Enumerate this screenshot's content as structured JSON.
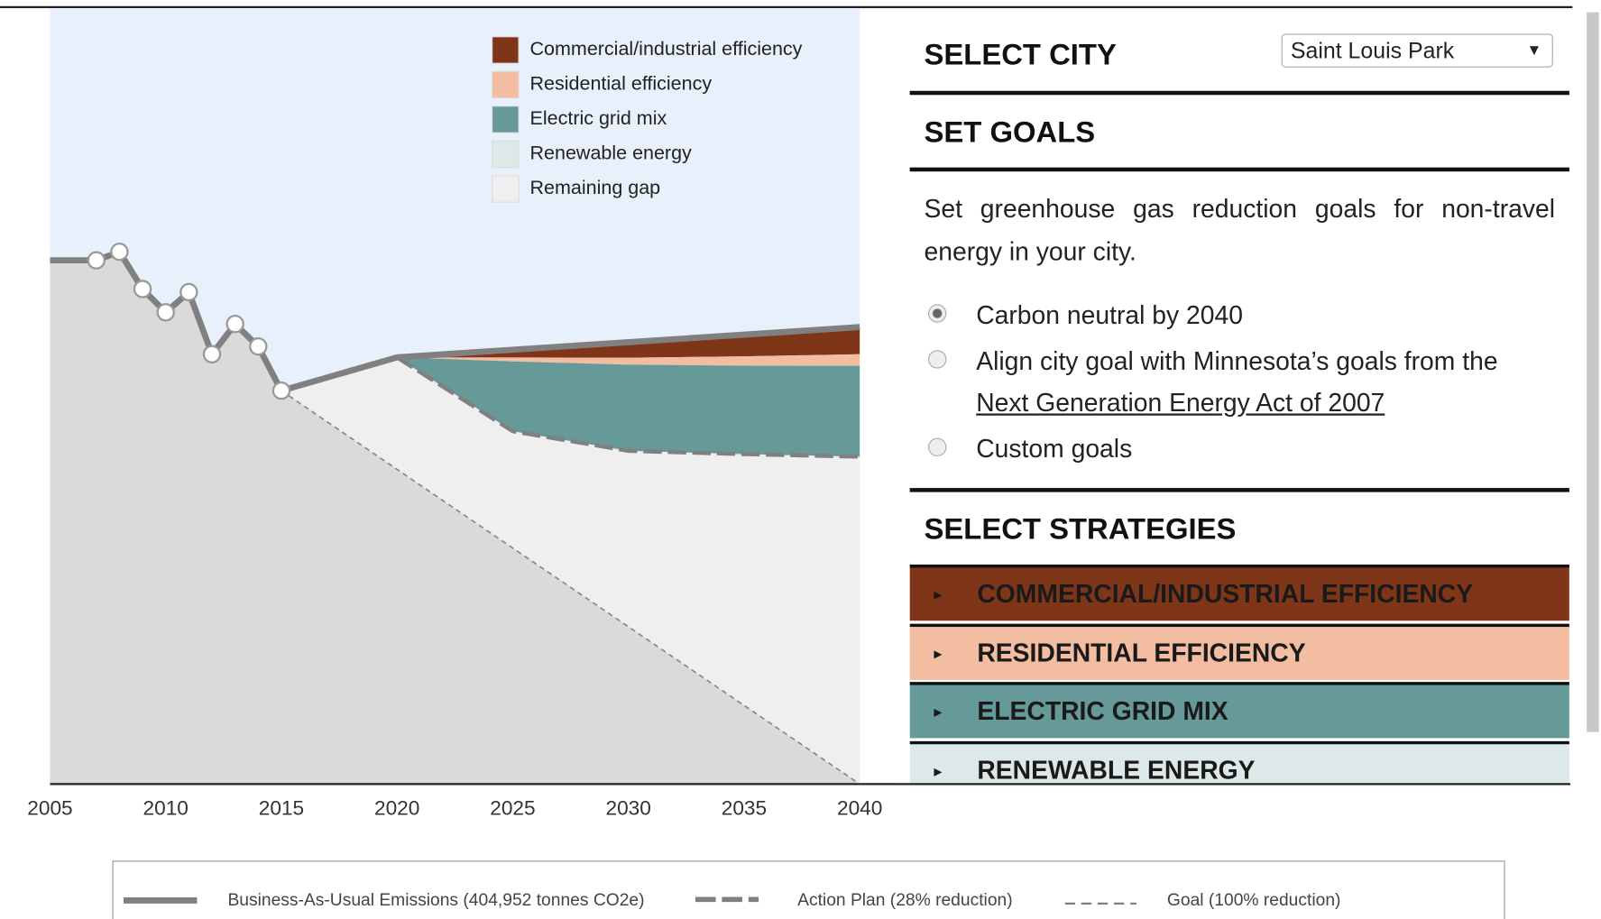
{
  "chart_data": {
    "type": "area",
    "xlim": [
      2005,
      2040
    ],
    "xticks": [
      2005,
      2010,
      2015,
      2020,
      2025,
      2030,
      2035,
      2040
    ],
    "ylim": [
      0,
      100
    ],
    "bau": {
      "name": "Business-As-Usual Emissions (404,952 tonnes CO2e)",
      "color": "#808080",
      "x": [
        2005,
        2007,
        2008,
        2009,
        2010,
        2011,
        2012,
        2013,
        2014,
        2015,
        2020,
        2040
      ],
      "values": [
        67.5,
        67.5,
        68.6,
        63.8,
        60.8,
        63.4,
        55.4,
        59.3,
        56.4,
        50.7,
        55.0,
        58.9
      ]
    },
    "years": [
      2020,
      2025,
      2030,
      2035,
      2040
    ],
    "series": [
      {
        "name": "Commercial/industrial efficiency",
        "color": "#7f3618",
        "values": [
          0,
          1.0,
          2.0,
          2.8,
          3.5
        ]
      },
      {
        "name": "Residential efficiency",
        "color": "#f2bda0",
        "values": [
          0,
          0.5,
          0.9,
          1.2,
          1.5
        ]
      },
      {
        "name": "Electric grid mix",
        "color": "#669a99",
        "values": [
          0,
          9.0,
          11.1,
          11.4,
          11.7
        ]
      },
      {
        "name": "Renewable energy",
        "color": "#dde9e8",
        "values": [
          0,
          0,
          0,
          0,
          0
        ]
      },
      {
        "name": "Remaining gap",
        "color": "#efefef"
      }
    ],
    "action_plan": "Action Plan (28% reduction)",
    "goal": {
      "name": "Goal (100% reduction)",
      "x": [
        2015,
        2040
      ],
      "values": [
        50.7,
        0
      ]
    }
  },
  "panel": {
    "city_heading": "SELECT CITY",
    "city": "Saint Louis Park",
    "goals_heading": "SET GOALS",
    "goals_text": "Set greenhouse gas reduction goals for non-travel energy in your city.",
    "options": [
      "Carbon neutral by 2040",
      "Align city goal with Minnesota’s goals from the",
      "Custom goals"
    ],
    "link": "Next Generation Energy Act of 2007",
    "strategies_heading": "SELECT STRATEGIES",
    "strategies": [
      "COMMERCIAL/INDUSTRIAL EFFICIENCY",
      "RESIDENTIAL EFFICIENCY",
      "ELECTRIC GRID MIX",
      "RENEWABLE ENERGY"
    ]
  }
}
